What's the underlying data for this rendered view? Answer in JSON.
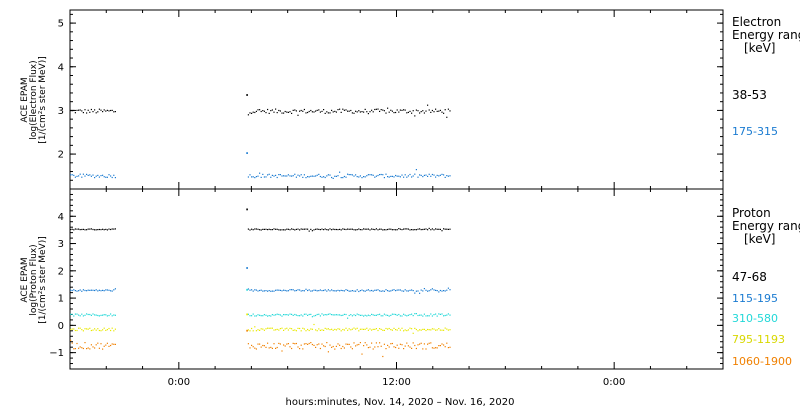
{
  "chart_data": [
    {
      "type": "scatter",
      "instrument": "ACE EPAM",
      "ylabel_lines": [
        "ACE EPAM",
        "log(Electron Flux)",
        "[1/(cm²s ster MeV)]"
      ],
      "ylim": [
        1.2,
        5.3
      ],
      "yticks": [
        2,
        3,
        4,
        5
      ],
      "legend_title": [
        "Electron",
        "Energy range",
        "[keV]"
      ],
      "series": [
        {
          "name": "38-53",
          "color": "#000000",
          "level": 2.98,
          "spread": 0.05,
          "spike": 3.35
        },
        {
          "name": "175-315",
          "color": "#1a7bd1",
          "level": 1.5,
          "spread": 0.04,
          "spike": 2.02
        }
      ]
    },
    {
      "type": "scatter",
      "instrument": "ACE EPAM",
      "ylabel_lines": [
        "ACE EPAM",
        "log(Proton Flux)",
        "[1/(cm²s ster MeV)]"
      ],
      "ylim": [
        -1.6,
        5.0
      ],
      "yticks": [
        -1,
        0,
        1,
        2,
        3,
        4
      ],
      "legend_title": [
        "Proton",
        "Energy range",
        "[keV]"
      ],
      "series": [
        {
          "name": "47-68",
          "color": "#000000",
          "level": 3.52,
          "spread": 0.02,
          "spike": 4.25
        },
        {
          "name": "115-195",
          "color": "#1a7bd1",
          "level": 1.28,
          "spread": 0.03,
          "spike": 2.1
        },
        {
          "name": "310-580",
          "color": "#22d8d8",
          "level": 0.38,
          "spread": 0.04,
          "spike": 1.3
        },
        {
          "name": "795-1193",
          "color": "#e8e800",
          "level": -0.15,
          "spread": 0.05,
          "spike": 0.4
        },
        {
          "name": "1060-1900",
          "color": "#f08000",
          "level": -0.75,
          "spread": 0.12,
          "spike": -0.2
        }
      ]
    }
  ],
  "x_axis": {
    "tick_labels": [
      "0:00",
      "12:00",
      "0:00"
    ],
    "xlabel": "hours:minutes, Nov. 14, 2020 – Nov. 16, 2020",
    "range_hours": [
      -6,
      30
    ],
    "tick_hours": [
      0,
      12,
      24
    ],
    "data_segments_hours": [
      [
        -6,
        -3.5
      ],
      [
        3.8,
        15.0
      ]
    ]
  }
}
